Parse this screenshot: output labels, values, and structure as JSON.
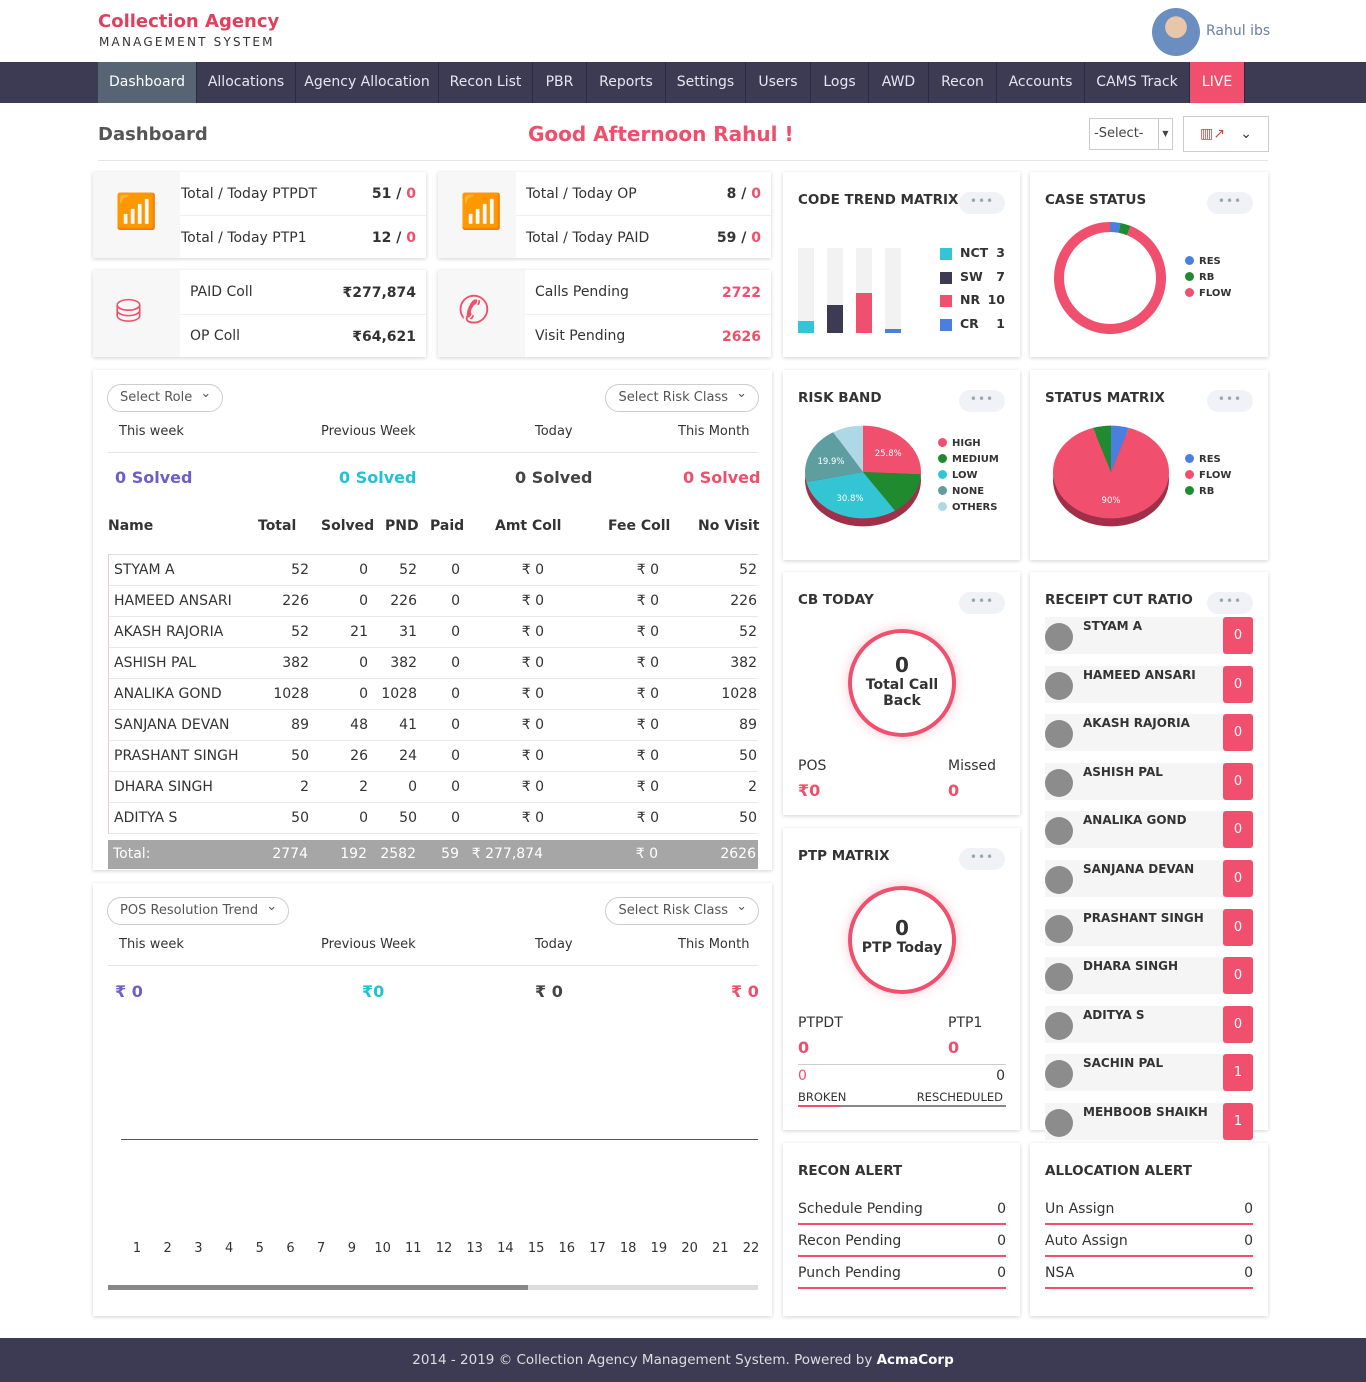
{
  "header": {
    "brand": "Collection Agency",
    "brand_sub": "MANAGEMENT SYSTEM",
    "user": "Rahul ibs"
  },
  "nav": [
    "Dashboard",
    "Allocations",
    "Agency Allocation",
    "Recon List",
    "PBR",
    "Reports",
    "Settings",
    "Users",
    "Logs",
    "AWD",
    "Recon",
    "Accounts",
    "CAMS Track",
    "LIVE"
  ],
  "page": {
    "title": "Dashboard",
    "greeting": "Good Afternoon Rahul !",
    "select": "-Select-"
  },
  "stats": {
    "ptpdt": {
      "label": "Total / Today PTPDT",
      "total": "51",
      "today": "0"
    },
    "ptp1": {
      "label": "Total / Today PTP1",
      "total": "12",
      "today": "0"
    },
    "op": {
      "label": "Total / Today OP",
      "total": "8",
      "today": "0"
    },
    "paid": {
      "label": "Total / Today PAID",
      "total": "59",
      "today": "0"
    },
    "paid_coll": {
      "label": "PAID Coll",
      "value": "₹277,874"
    },
    "op_coll": {
      "label": "OP Coll",
      "value": "₹64,621"
    },
    "calls": {
      "label": "Calls Pending",
      "value": "2722"
    },
    "visits": {
      "label": "Visit Pending",
      "value": "2626"
    }
  },
  "solved_panel": {
    "role": "Select Role",
    "risk": "Select Risk Class",
    "periods": [
      "This week",
      "Previous Week",
      "Today",
      "This Month"
    ],
    "values": [
      "0 Solved",
      "0 Solved",
      "0 Solved",
      "0 Solved"
    ],
    "columns": [
      "Name",
      "Total",
      "Solved",
      "PND",
      "Paid",
      "Amt Coll",
      "Fee Coll",
      "No Visit"
    ],
    "rows": [
      [
        "STYAM A",
        "52",
        "0",
        "52",
        "0",
        "₹ 0",
        "₹ 0",
        "52"
      ],
      [
        "HAMEED ANSARI",
        "226",
        "0",
        "226",
        "0",
        "₹ 0",
        "₹ 0",
        "226"
      ],
      [
        "AKASH RAJORIA",
        "52",
        "21",
        "31",
        "0",
        "₹ 0",
        "₹ 0",
        "52"
      ],
      [
        "ASHISH PAL",
        "382",
        "0",
        "382",
        "0",
        "₹ 0",
        "₹ 0",
        "382"
      ],
      [
        "ANALIKA GOND",
        "1028",
        "0",
        "1028",
        "0",
        "₹ 0",
        "₹ 0",
        "1028"
      ],
      [
        "SANJANA  DEVAN",
        "89",
        "48",
        "41",
        "0",
        "₹ 0",
        "₹ 0",
        "89"
      ],
      [
        "PRASHANT SINGH",
        "50",
        "26",
        "24",
        "0",
        "₹ 0",
        "₹ 0",
        "50"
      ],
      [
        "DHARA SINGH",
        "2",
        "2",
        "0",
        "0",
        "₹ 0",
        "₹ 0",
        "2"
      ],
      [
        "ADITYA S",
        "50",
        "0",
        "50",
        "0",
        "₹ 0",
        "₹ 0",
        "50"
      ]
    ],
    "total": [
      "Total:",
      "2774",
      "192",
      "2582",
      "59",
      "₹ 277,874",
      "₹ 0",
      "2626"
    ]
  },
  "pos_panel": {
    "trend": "POS Resolution Trend",
    "risk": "Select Risk Class",
    "periods": [
      "This week",
      "Previous Week",
      "Today",
      "This Month"
    ],
    "values": [
      "₹ 0",
      "₹0",
      "₹ 0",
      "₹ 0"
    ],
    "x_ticks": [
      "1",
      "2",
      "3",
      "4",
      "5",
      "6",
      "7",
      "9",
      "10",
      "11",
      "12",
      "13",
      "14",
      "15",
      "16",
      "17",
      "18",
      "19",
      "20",
      "21",
      "22"
    ]
  },
  "code_trend": {
    "title": "CODE TREND MATRIX",
    "ymax": 21,
    "items": [
      {
        "name": "NCT",
        "value": 3,
        "color": "#33c5d3"
      },
      {
        "name": "SW",
        "value": 7,
        "color": "#3d3a54"
      },
      {
        "name": "NR",
        "value": 10,
        "color": "#f0506e"
      },
      {
        "name": "CR",
        "value": 1,
        "color": "#4a7fe0"
      }
    ]
  },
  "case_status": {
    "title": "CASE STATUS",
    "slices": [
      {
        "name": "RES",
        "value": 3,
        "color": "#4a7fe0"
      },
      {
        "name": "RB",
        "value": 3,
        "color": "#1f8a2e"
      },
      {
        "name": "FLOW",
        "value": 94,
        "color": "#f0506e"
      }
    ]
  },
  "risk_band": {
    "title": "RISK BAND",
    "slices": [
      {
        "name": "HIGH",
        "value": 25.8,
        "color": "#f0506e",
        "label": "25.8%"
      },
      {
        "name": "MEDIUM",
        "value": 14.9,
        "color": "#1f8a2e"
      },
      {
        "name": "LOW",
        "value": 30.8,
        "color": "#33c5d3",
        "label": "30.8%"
      },
      {
        "name": "NONE",
        "value": 19.9,
        "color": "#5f9ea0",
        "label": "19.9%"
      },
      {
        "name": "OTHERS",
        "value": 8.6,
        "color": "#add8e6"
      }
    ]
  },
  "status_matrix": {
    "title": "STATUS MATRIX",
    "slices": [
      {
        "name": "RES",
        "value": 5,
        "color": "#4a7fe0"
      },
      {
        "name": "FLOW",
        "value": 90,
        "color": "#f0506e",
        "label": "90%"
      },
      {
        "name": "RB",
        "value": 5,
        "color": "#1f8a2e"
      }
    ]
  },
  "cb_today": {
    "title": "CB TODAY",
    "count": "0",
    "label1": "Total Call",
    "label2": "Back",
    "pos_label": "POS",
    "pos": "₹0",
    "missed_label": "Missed",
    "missed": "0"
  },
  "ptp_matrix": {
    "title": "PTP MATRIX",
    "count": "0",
    "label": "PTP Today",
    "ptpdt_label": "PTPDT",
    "ptpdt": "0",
    "ptp1_label": "PTP1",
    "ptp1": "0",
    "broken": "0",
    "rescheduled": "0",
    "broken_label": "BROKEN",
    "rescheduled_label": "RESCHEDULED"
  },
  "receipt": {
    "title": "RECEIPT CUT RATIO",
    "rows": [
      {
        "name": "STYAM A",
        "value": "0"
      },
      {
        "name": "HAMEED ANSARI",
        "value": "0"
      },
      {
        "name": "AKASH RAJORIA",
        "value": "0"
      },
      {
        "name": "ASHISH PAL",
        "value": "0"
      },
      {
        "name": "ANALIKA GOND",
        "value": "0"
      },
      {
        "name": "SANJANA DEVAN",
        "value": "0"
      },
      {
        "name": "PRASHANT SINGH",
        "value": "0"
      },
      {
        "name": "DHARA SINGH",
        "value": "0"
      },
      {
        "name": "ADITYA S",
        "value": "0"
      },
      {
        "name": "SACHIN PAL",
        "value": "1"
      },
      {
        "name": "MEHBOOB SHAIKH",
        "value": "1"
      }
    ]
  },
  "recon_alert": {
    "title": "RECON ALERT",
    "rows": [
      [
        "Schedule Pending",
        "0"
      ],
      [
        "Recon Pending",
        "0"
      ],
      [
        "Punch Pending",
        "0"
      ]
    ]
  },
  "allocation_alert": {
    "title": "ALLOCATION ALERT",
    "rows": [
      [
        "Un Assign",
        "0"
      ],
      [
        "Auto Assign",
        "0"
      ],
      [
        "NSA",
        "0"
      ]
    ]
  },
  "footer": {
    "text": "2014 - 2019 © Collection Agency Management System. Powered by ",
    "brand": "AcmaCorp"
  }
}
